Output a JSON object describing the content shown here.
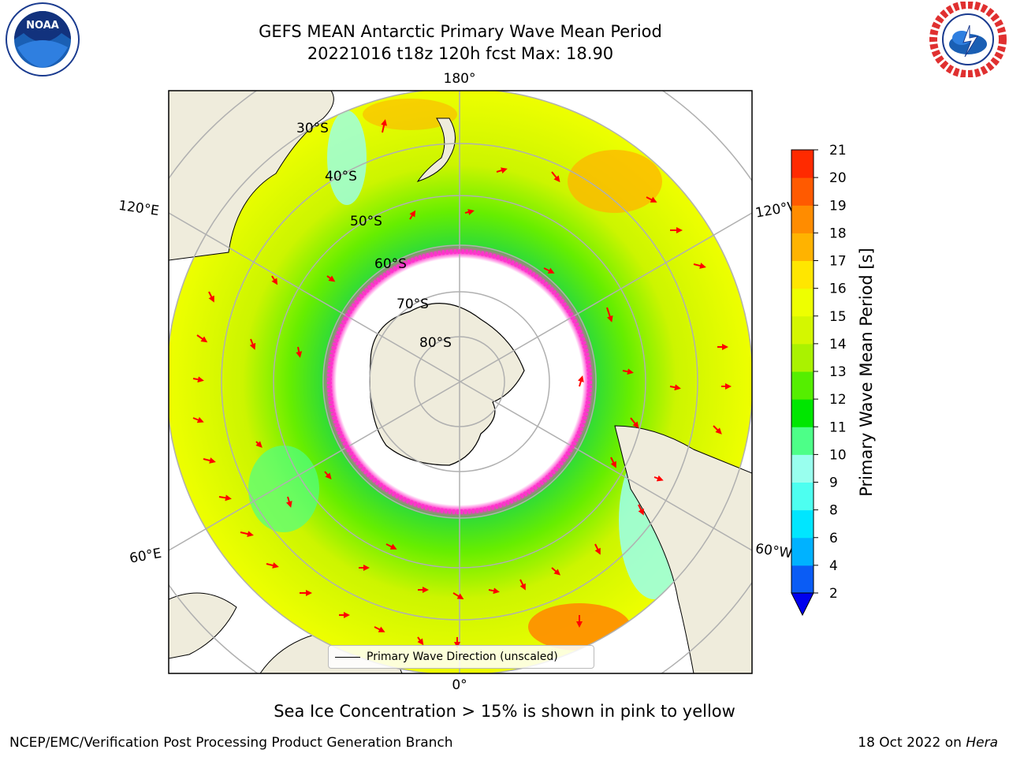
{
  "header": {
    "title_line1": "GEFS MEAN Antarctic Primary Wave Mean Period",
    "title_line2": "20221016 t18z 120h fcst   Max: 18.90"
  },
  "logos": {
    "left": "noara-logo",
    "right": "nws-logo"
  },
  "map": {
    "projection": "south-polar-stereographic",
    "longitude_labels": {
      "top": "180°",
      "bottom": "0°",
      "upper_left": "120°E",
      "upper_right": "120°W",
      "lower_left": "60°E",
      "lower_right": "60°W"
    },
    "latitude_labels": [
      "30°S",
      "40°S",
      "50°S",
      "60°S",
      "70°S",
      "80°S"
    ],
    "legend_label": "Primary Wave Direction (unscaled)",
    "land_color": "#efecdc",
    "ice_color": "#ff33cc"
  },
  "colorbar": {
    "label": "Primary Wave Mean Period [s]",
    "ticks": [
      "2",
      "4",
      "6",
      "8",
      "9",
      "10",
      "11",
      "12",
      "13",
      "14",
      "15",
      "16",
      "17",
      "18",
      "19",
      "20",
      "21"
    ],
    "colors": [
      "#0a5cf5",
      "#00b2ff",
      "#00e6ff",
      "#4dfff0",
      "#99ffee",
      "#4dff88",
      "#00e600",
      "#55ee00",
      "#aaf200",
      "#d4f700",
      "#eeff00",
      "#ffe600",
      "#ffb300",
      "#ff8c00",
      "#ff5a00",
      "#ff2a00"
    ],
    "extend_color": "#0000ee"
  },
  "caption": "Sea Ice Concentration > 15% is shown in pink to yellow",
  "footer": {
    "left": "NCEP/EMC/Verification Post Processing Product Generation Branch",
    "right_prefix": "18 Oct 2022 on ",
    "right_machine": "Hera"
  }
}
